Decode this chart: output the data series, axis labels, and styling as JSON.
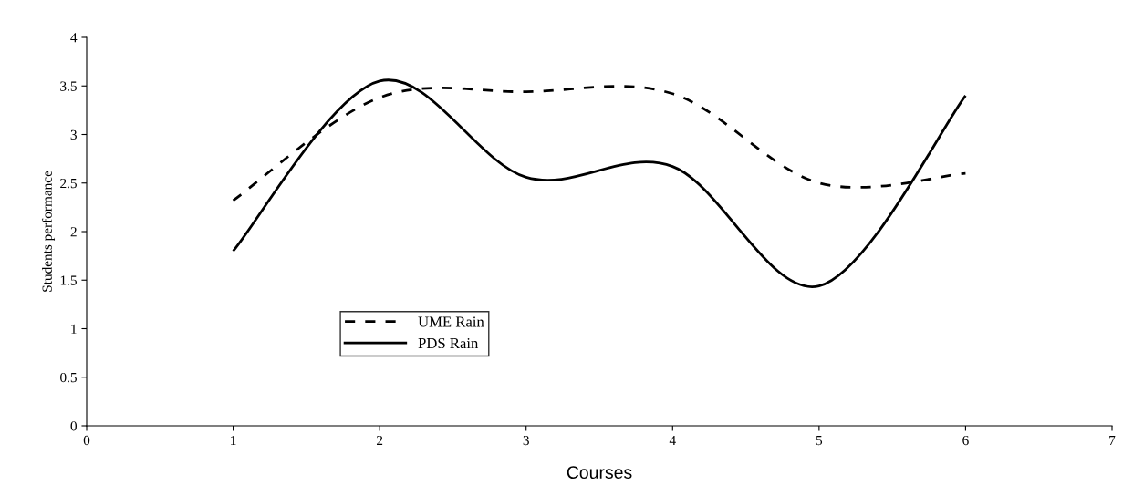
{
  "chart_data": {
    "type": "line",
    "xlabel": "Courses",
    "ylabel": "Students performance",
    "x": [
      1,
      2,
      3,
      4,
      5,
      6
    ],
    "series": [
      {
        "name": "UME Rain",
        "color": "#000000",
        "line_style": "dashed",
        "values": [
          2.32,
          3.38,
          3.44,
          3.42,
          2.5,
          2.6
        ]
      },
      {
        "name": "PDS Rain",
        "color": "#000000",
        "line_style": "solid",
        "values": [
          1.8,
          3.55,
          2.56,
          2.67,
          1.44,
          3.4
        ]
      }
    ],
    "xlim": [
      0,
      7
    ],
    "xticks": [
      0,
      1,
      2,
      3,
      4,
      5,
      6,
      7
    ],
    "ylim": [
      0,
      4
    ],
    "yticks": [
      0,
      0.5,
      1,
      1.5,
      2,
      2.5,
      3,
      3.5,
      4
    ],
    "grid": false,
    "legend": "bottom left",
    "marker": "none"
  }
}
